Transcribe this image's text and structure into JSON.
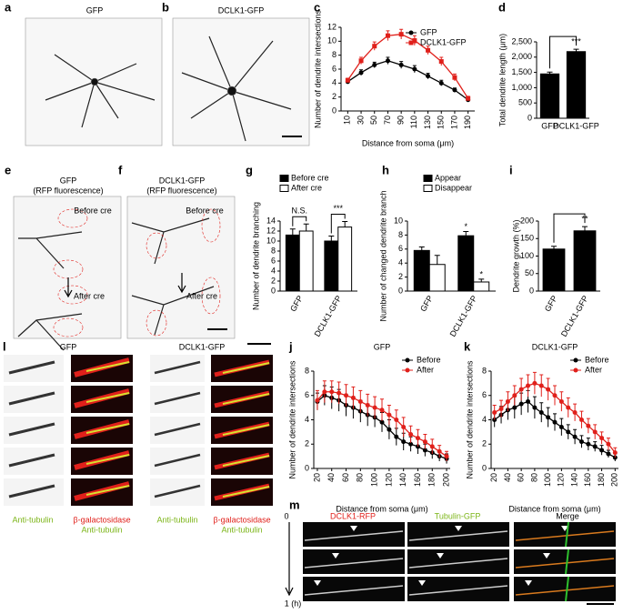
{
  "panel_letters": [
    "a",
    "b",
    "c",
    "d",
    "e",
    "f",
    "g",
    "h",
    "i",
    "j",
    "k",
    "l",
    "m"
  ],
  "image_labels": [
    {
      "text": "GFP"
    },
    {
      "text": "DCLK1-GFP"
    },
    {
      "text": "GFP"
    },
    {
      "text": "(RFP fluorescence)"
    },
    {
      "text": "Before cre"
    },
    {
      "text": "After cre"
    },
    {
      "text": "DCLK1-GFP"
    },
    {
      "text": "(RFP fluorescence)"
    },
    {
      "text": "Before cre"
    },
    {
      "text": "After cre"
    },
    {
      "text": "GFP"
    },
    {
      "text": "DCLK1-GFP"
    },
    {
      "text": "Anti-tubulin",
      "color": "#7cb518"
    },
    {
      "text": "β-galactosidase",
      "color": "#e0201b"
    },
    {
      "text": "Anti-tubulin",
      "color": "#7cb518"
    },
    {
      "text": "Anti-tubulin",
      "color": "#7cb518"
    },
    {
      "text": "β-galactosidase",
      "color": "#e0201b"
    },
    {
      "text": "Anti-tubulin",
      "color": "#7cb518"
    },
    {
      "text": "0"
    },
    {
      "text": "DCLK1-RFP",
      "color": "#e0201b"
    },
    {
      "text": "Tubulin-GFP",
      "color": "#7cb518"
    },
    {
      "text": "Merge"
    },
    {
      "text": "1 (h)"
    }
  ],
  "chart_data": [
    {
      "type": "line",
      "xlabel": "Distance from soma (μm)",
      "ylabel": "Number of dendrite intersections",
      "x": [
        10,
        30,
        50,
        70,
        90,
        110,
        130,
        150,
        170,
        190
      ],
      "xlim": [
        0,
        200
      ],
      "xticks": [
        10,
        30,
        50,
        70,
        90,
        110,
        130,
        150,
        170,
        190
      ],
      "ylim": [
        0,
        12
      ],
      "yticks": [
        0,
        2,
        4,
        6,
        8,
        10,
        12
      ],
      "legend": "upper right",
      "series": [
        {
          "name": "GFP",
          "color": "#000000",
          "marker": "circle",
          "values": [
            4.2,
            5.5,
            6.6,
            7.2,
            6.6,
            6.0,
            5.0,
            4.0,
            3.0,
            1.6
          ],
          "errors": [
            0.3,
            0.4,
            0.4,
            0.5,
            0.5,
            0.5,
            0.4,
            0.4,
            0.3,
            0.3
          ]
        },
        {
          "name": "DCLK1-GFP",
          "color": "#e0201b",
          "marker": "square",
          "values": [
            4.4,
            7.2,
            9.3,
            10.8,
            11.0,
            10.1,
            8.7,
            7.1,
            4.8,
            1.8
          ],
          "errors": [
            0.3,
            0.5,
            0.6,
            0.7,
            0.7,
            0.7,
            0.6,
            0.6,
            0.5,
            0.3
          ]
        }
      ]
    },
    {
      "type": "bar",
      "ylabel": "Total dendrite length (μm)",
      "categories": [
        "GFP",
        "DCLK1-GFP"
      ],
      "values": [
        1450,
        2180
      ],
      "errors": [
        60,
        80
      ],
      "color": "#000000",
      "ylim": [
        0,
        2500
      ],
      "yticks": [
        0,
        {
          "value": 500,
          "label": "500"
        },
        {
          "value": 1000,
          "label": "1,000"
        },
        {
          "value": 1500,
          "label": "1,500"
        },
        {
          "value": 2000,
          "label": "2,000"
        },
        {
          "value": 2500,
          "label": "2,500"
        }
      ],
      "annotations": [
        "***"
      ]
    },
    {
      "type": "bar",
      "ylabel": "Number of dendrite branching",
      "categories": [
        "GFP",
        "DCLK1-GFP"
      ],
      "series": [
        {
          "name": "Before cre",
          "color": "#000000",
          "values": [
            11.2,
            10.0
          ],
          "errors": [
            1.2,
            1.0
          ]
        },
        {
          "name": "After cre",
          "color": "#ffffff",
          "values": [
            12.0,
            12.8
          ],
          "errors": [
            1.4,
            1.1
          ]
        }
      ],
      "ylim": [
        0,
        14
      ],
      "yticks": [
        0,
        2,
        4,
        6,
        8,
        10,
        12,
        14
      ],
      "annotations": [
        "N.S.",
        "***"
      ]
    },
    {
      "type": "bar",
      "ylabel": "Number of changed dendrite branch",
      "categories": [
        "GFP",
        "DCLK1-GFP"
      ],
      "series": [
        {
          "name": "Appear",
          "color": "#000000",
          "values": [
            5.8,
            7.9
          ],
          "errors": [
            0.5,
            0.6
          ]
        },
        {
          "name": "Disappear",
          "color": "#ffffff",
          "values": [
            3.8,
            1.3
          ],
          "errors": [
            1.3,
            0.4
          ]
        }
      ],
      "ylim": [
        0,
        10
      ],
      "yticks": [
        0,
        2,
        4,
        6,
        8,
        10
      ],
      "annotations": [
        "*",
        "*"
      ]
    },
    {
      "type": "bar",
      "ylabel": "Dendrite growth (%)",
      "categories": [
        "GFP",
        "DCLK1-GFP"
      ],
      "values": [
        120,
        172
      ],
      "errors": [
        8,
        12
      ],
      "color": "#000000",
      "ylim": [
        0,
        200
      ],
      "yticks": [
        0,
        50,
        100,
        150,
        200
      ],
      "annotations": [
        "**"
      ]
    },
    {
      "type": "line",
      "title": "GFP",
      "xlabel": "Distance from soma (μm)",
      "ylabel": "Number of dendrite intersections",
      "x": [
        20,
        30,
        40,
        50,
        60,
        70,
        80,
        90,
        100,
        110,
        120,
        130,
        140,
        150,
        160,
        170,
        180,
        190,
        200
      ],
      "xlim": [
        15,
        205
      ],
      "xticks": [
        20,
        40,
        60,
        80,
        100,
        120,
        140,
        160,
        180,
        200
      ],
      "ylim": [
        0,
        8
      ],
      "yticks": [
        0,
        2,
        4,
        6,
        8
      ],
      "legend": "upper right",
      "series": [
        {
          "name": "Before",
          "color": "#000000",
          "marker": "circle",
          "values": [
            5.5,
            6.0,
            5.8,
            5.6,
            5.2,
            5.0,
            4.7,
            4.4,
            4.2,
            3.8,
            3.2,
            2.6,
            2.2,
            2.0,
            1.8,
            1.5,
            1.3,
            1.0,
            0.8
          ],
          "errors": [
            0.7,
            0.8,
            0.9,
            0.9,
            0.9,
            0.9,
            0.9,
            0.9,
            0.8,
            0.8,
            0.8,
            0.7,
            0.7,
            0.6,
            0.6,
            0.5,
            0.5,
            0.4,
            0.4
          ]
        },
        {
          "name": "After",
          "color": "#e0201b",
          "marker": "circle",
          "values": [
            5.6,
            6.3,
            6.3,
            6.2,
            6.0,
            5.8,
            5.5,
            5.2,
            5.0,
            4.8,
            4.4,
            4.0,
            3.4,
            2.8,
            2.5,
            2.2,
            1.8,
            1.4,
            1.0
          ],
          "errors": [
            0.8,
            0.9,
            0.9,
            0.9,
            0.9,
            0.9,
            0.9,
            0.9,
            0.9,
            0.9,
            0.8,
            0.8,
            0.8,
            0.7,
            0.7,
            0.6,
            0.6,
            0.5,
            0.4
          ]
        }
      ]
    },
    {
      "type": "line",
      "title": "DCLK1-GFP",
      "xlabel": "Distance from soma (μm)",
      "ylabel": "Number of dendrite intersections",
      "x": [
        20,
        30,
        40,
        50,
        60,
        70,
        80,
        90,
        100,
        110,
        120,
        130,
        140,
        150,
        160,
        170,
        180,
        190,
        200
      ],
      "xlim": [
        15,
        205
      ],
      "xticks": [
        20,
        40,
        60,
        80,
        100,
        120,
        140,
        160,
        180,
        200
      ],
      "ylim": [
        0,
        8
      ],
      "yticks": [
        0,
        2,
        4,
        6,
        8
      ],
      "legend": "upper right",
      "series": [
        {
          "name": "Before",
          "color": "#000000",
          "marker": "circle",
          "values": [
            4.0,
            4.4,
            4.8,
            5.0,
            5.3,
            5.5,
            5.0,
            4.6,
            4.2,
            3.8,
            3.4,
            3.0,
            2.6,
            2.2,
            2.0,
            1.8,
            1.5,
            1.2,
            0.9
          ],
          "errors": [
            0.6,
            0.7,
            0.8,
            0.9,
            0.9,
            0.9,
            0.9,
            0.8,
            0.8,
            0.7,
            0.7,
            0.6,
            0.6,
            0.5,
            0.5,
            0.4,
            0.4,
            0.3,
            0.3
          ]
        },
        {
          "name": "After",
          "color": "#e0201b",
          "marker": "circle",
          "values": [
            4.6,
            4.9,
            5.5,
            6.0,
            6.5,
            6.8,
            7.0,
            6.8,
            6.5,
            6.0,
            5.5,
            5.0,
            4.6,
            4.0,
            3.5,
            3.0,
            2.5,
            2.0,
            1.3
          ],
          "errors": [
            0.6,
            0.7,
            0.8,
            0.8,
            0.9,
            0.9,
            0.9,
            0.9,
            0.9,
            0.8,
            0.8,
            0.8,
            0.7,
            0.7,
            0.6,
            0.6,
            0.5,
            0.5,
            0.4
          ]
        }
      ]
    }
  ]
}
